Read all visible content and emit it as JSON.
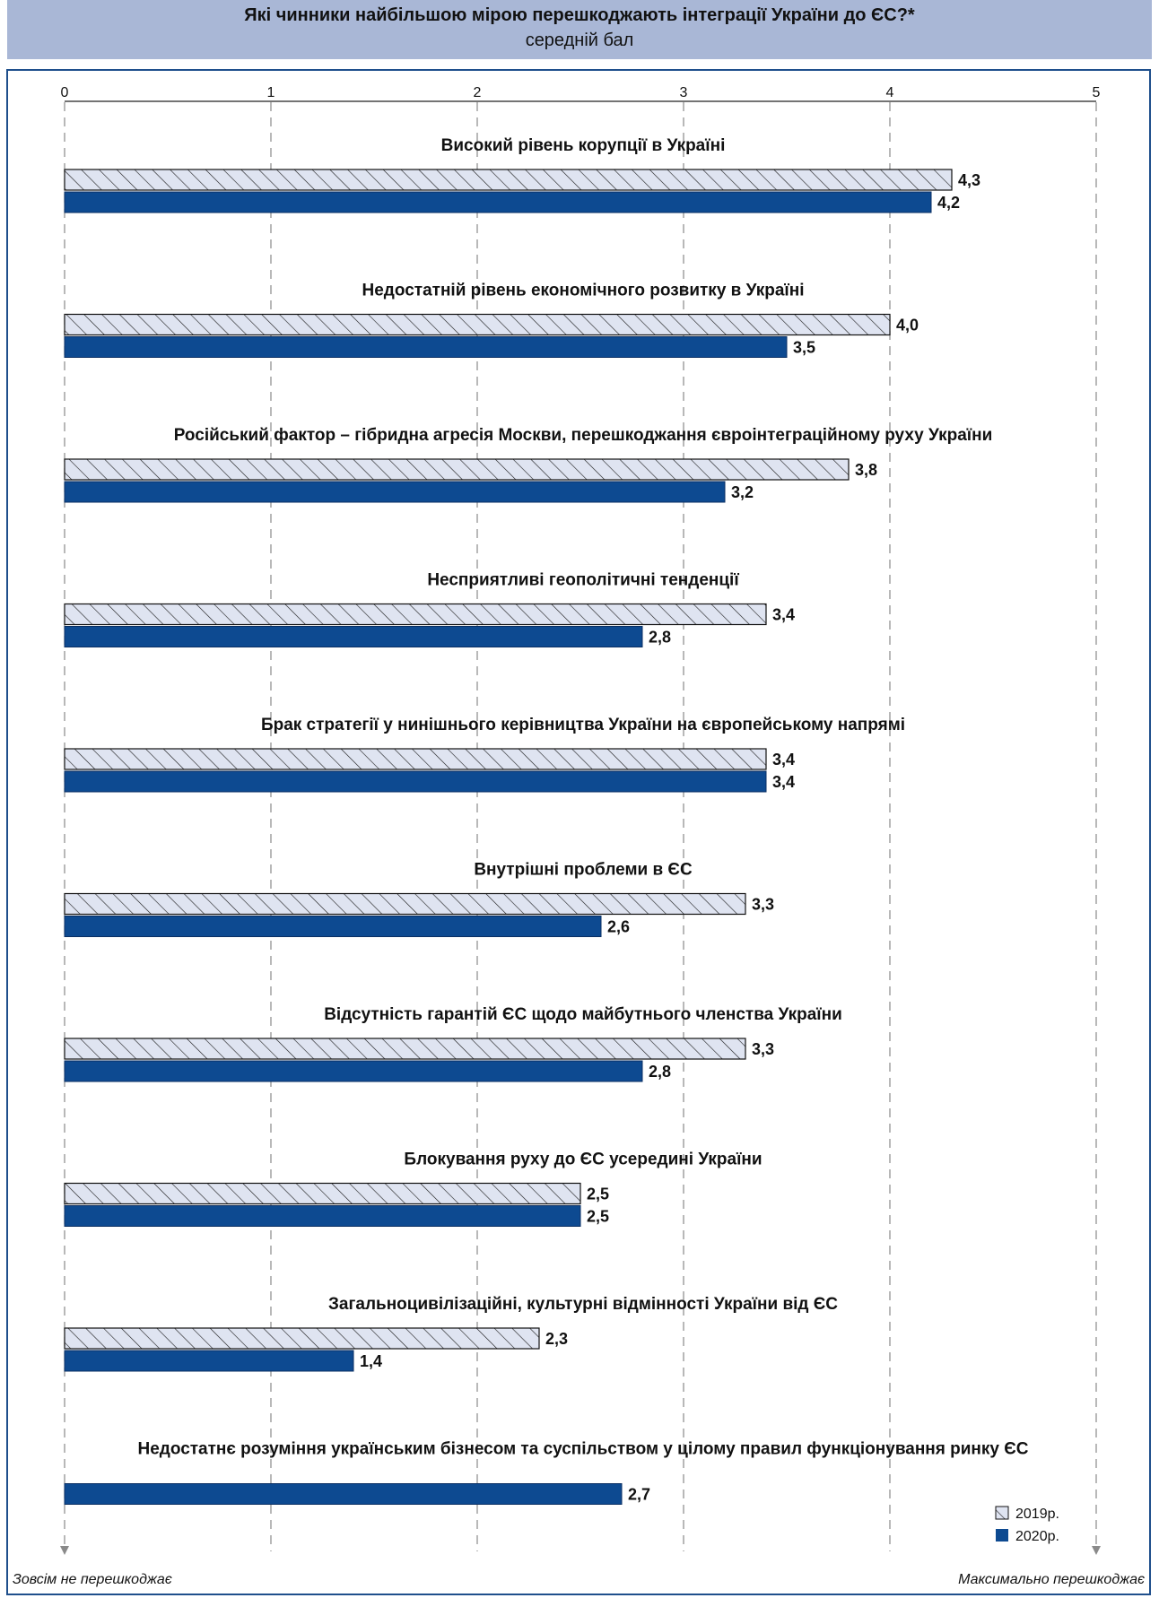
{
  "header": {
    "title": "Які чинники найбільшою мірою перешкоджають інтеграції України до ЄС?*",
    "subtitle": "середній бал"
  },
  "scale_notes": {
    "left": "Зовсім не перешкоджає",
    "right": "Максимально перешкоджає"
  },
  "colors": {
    "header_bg": "#a9b7d6",
    "series_2019_fill": "#dfe4f1",
    "series_2020_fill": "#0d4a91",
    "frame": "#1f4f8c"
  },
  "chart_data": {
    "type": "bar",
    "orientation": "horizontal",
    "xlim": [
      0,
      5
    ],
    "xticks": [
      "0",
      "1",
      "2",
      "3",
      "4",
      "5"
    ],
    "grid": true,
    "legend_position": "bottom-right",
    "categories": [
      "Високий рівень корупції в Україні",
      "Недостатній рівень економічного розвитку в Україні",
      "Російський фактор – гібридна агресія Москви, перешкоджання євроінтеграційному руху України",
      "Несприятливі геополітичні тенденції",
      "Брак стратегії у нинішнього керівництва України на європейському напрямі",
      "Внутрішні проблеми в ЄС",
      "Відсутність гарантій ЄС щодо майбутнього членства України",
      "Блокування руху до ЄС усередині України",
      "Загальноцивілізаційні, культурні відмінності України від ЄС",
      "Недостатнє розуміння українським бізнесом та суспільством у цілому правил функціонування ринку ЄС"
    ],
    "series": [
      {
        "name": "2019р.",
        "values": [
          4.3,
          4.0,
          3.8,
          3.4,
          3.4,
          3.3,
          3.3,
          2.5,
          2.3,
          null
        ],
        "labels": [
          "4,3",
          "4,0",
          "3,8",
          "3,4",
          "3,4",
          "3,3",
          "3,3",
          "2,5",
          "2,3",
          null
        ]
      },
      {
        "name": "2020р.",
        "values": [
          4.2,
          3.5,
          3.2,
          2.8,
          3.4,
          2.6,
          2.8,
          2.5,
          1.4,
          2.7
        ],
        "labels": [
          "4,2",
          "3,5",
          "3,2",
          "2,8",
          "3,4",
          "2,6",
          "2,8",
          "2,5",
          "1,4",
          "2,7"
        ]
      }
    ]
  }
}
